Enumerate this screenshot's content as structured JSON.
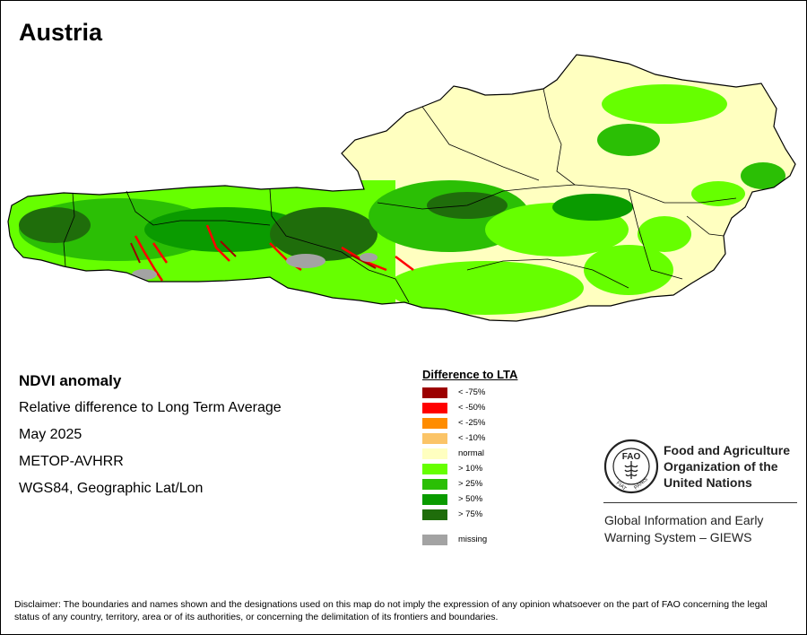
{
  "map": {
    "title": "Austria",
    "colors": {
      "normal": "#ffffc0",
      "outline": "#000000",
      "lake": "#a3a3a3"
    }
  },
  "info": {
    "title": "NDVI anomaly",
    "line1": "Relative difference to Long Term Average",
    "line2": "May 2025",
    "line3": "METOP-AVHRR",
    "line4": "WGS84, Geographic Lat/Lon"
  },
  "legend": {
    "title": "Difference to LTA",
    "items": [
      {
        "label": "< -75%",
        "color": "#9c0000"
      },
      {
        "label": "< -50%",
        "color": "#ff0000"
      },
      {
        "label": "< -25%",
        "color": "#ff8c00"
      },
      {
        "label": "< -10%",
        "color": "#fbc467"
      },
      {
        "label": "normal",
        "color": "#ffffc0"
      },
      {
        "label": "> 10%",
        "color": "#66ff00"
      },
      {
        "label": "> 25%",
        "color": "#2bbf05"
      },
      {
        "label": "> 50%",
        "color": "#0a9b00"
      },
      {
        "label": "> 75%",
        "color": "#1f6d0b"
      }
    ],
    "missing": {
      "label": "missing",
      "color": "#a3a3a3"
    }
  },
  "logo": {
    "name_line1": "Food and Agriculture",
    "name_line2": "Organization of the",
    "name_line3": "United Nations",
    "emblem_text": "FAO",
    "motto_left": "FIAT",
    "motto_right": "PANIS",
    "giews_line1": "Global Information and Early",
    "giews_line2": "Warning System – GIEWS"
  },
  "disclaimer": "Disclaimer: The boundaries and names shown and the designations used on this map do not imply the expression of any opinion whatsoever on the part of FAO concerning the legal status of any country, territory, area or of its authorities, or concerning the delimitation of its frontiers and boundaries."
}
